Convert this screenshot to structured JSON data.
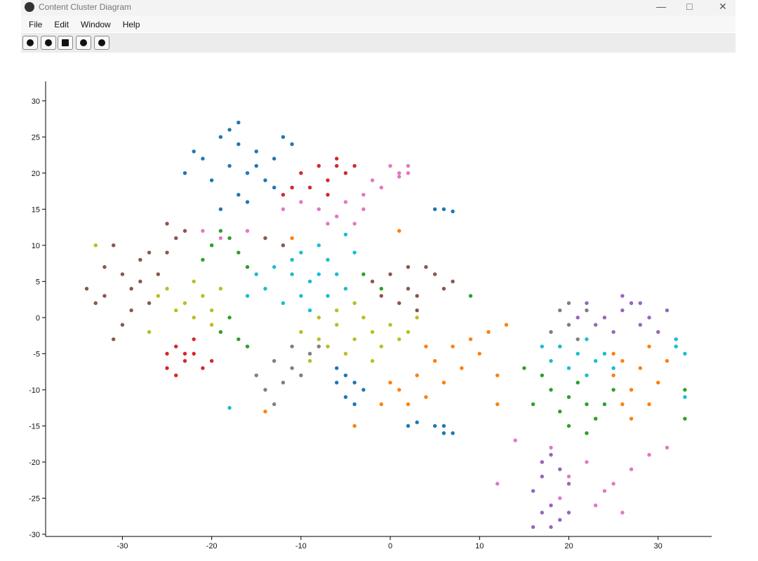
{
  "window": {
    "title": "Content Cluster Diagram",
    "menu": [
      "File",
      "Edit",
      "Window",
      "Help"
    ]
  },
  "chart_data": {
    "type": "scatter",
    "xlim": [
      -38.6,
      36
    ],
    "ylim": [
      -30.3,
      32.7
    ],
    "xticks": [
      -30,
      -20,
      -10,
      0,
      10,
      20,
      30
    ],
    "yticks": [
      -30,
      -25,
      -20,
      -15,
      -10,
      -5,
      0,
      5,
      10,
      15,
      20,
      25,
      30
    ],
    "series": [
      {
        "color": "#1f77b4",
        "x": [
          -19,
          -17,
          -15,
          -13,
          -21,
          -18,
          -16,
          -14,
          -20,
          -17,
          -16,
          -19,
          -22,
          -12,
          -11,
          -17,
          -15,
          -23,
          -13,
          -18,
          -5,
          -4,
          -6,
          -3,
          -5,
          -4,
          -6,
          5,
          6,
          7,
          6,
          2,
          3,
          5,
          6,
          7
        ],
        "values": [
          25,
          24,
          23,
          22,
          22,
          21,
          20,
          19,
          19,
          17,
          16,
          15,
          23,
          25,
          24,
          27,
          21,
          20,
          18,
          26,
          -8,
          -9,
          -7,
          -10,
          -11,
          -12,
          -9,
          -15,
          -16,
          -16,
          -15,
          -15,
          -14.5,
          15,
          15,
          14.7
        ]
      },
      {
        "color": "#d62728",
        "x": [
          -8,
          -6,
          -10,
          -7,
          -5,
          -9,
          -4,
          -11,
          -7,
          -6,
          -12,
          -24,
          -22,
          -25,
          -23,
          -21,
          -24,
          -22,
          -20,
          -23,
          -25
        ],
        "values": [
          21,
          22,
          20,
          19,
          20,
          18,
          21,
          18,
          17,
          21,
          17,
          -4,
          -5,
          -7,
          -6,
          -7,
          -8,
          -3,
          -6,
          -5,
          -5
        ]
      },
      {
        "color": "#e377c2",
        "x": [
          -8,
          -5,
          -3,
          -10,
          -6,
          -2,
          -4,
          -1,
          -7,
          -12,
          -3,
          0,
          1,
          2,
          1,
          2,
          17,
          20,
          22,
          25,
          27,
          19,
          23,
          26,
          29,
          31,
          18,
          24,
          14,
          12,
          -16,
          -19,
          -21
        ],
        "values": [
          15,
          16,
          17,
          16,
          14,
          19,
          13,
          18,
          13,
          15,
          15,
          21,
          20,
          20,
          19.5,
          21,
          -20,
          -22,
          -20,
          -23,
          -21,
          -25,
          -26,
          -27,
          -19,
          -18,
          -18,
          -24,
          -17,
          -23,
          12,
          11,
          12
        ]
      },
      {
        "color": "#9467bd",
        "x": [
          22,
          24,
          26,
          28,
          23,
          25,
          27,
          29,
          30,
          21,
          26,
          28,
          31,
          17,
          18,
          17,
          19,
          16,
          18,
          17,
          19,
          20,
          16,
          18,
          20
        ],
        "values": [
          2,
          0,
          1,
          -1,
          -1,
          -2,
          2,
          0,
          -2,
          0,
          3,
          2,
          1,
          -20,
          -19,
          -22,
          -21,
          -24,
          -26,
          -27,
          -28,
          -27,
          -29,
          -29,
          -23
        ]
      },
      {
        "color": "#8c564b",
        "x": [
          -34,
          -32,
          -30,
          -28,
          -29,
          -27,
          -31,
          -26,
          -25,
          -24,
          -29,
          -33,
          -27,
          -30,
          -25,
          -28,
          -31,
          -23,
          -32,
          -2,
          0,
          2,
          3,
          1,
          4,
          -1,
          5,
          2,
          6,
          7,
          3,
          -14,
          -12
        ],
        "values": [
          4,
          3,
          6,
          8,
          4,
          2,
          10,
          6,
          13,
          11,
          1,
          2,
          9,
          -1,
          9,
          5,
          -3,
          12,
          7,
          5,
          6,
          4,
          3,
          2,
          7,
          3,
          6,
          7,
          4,
          5,
          1,
          11,
          10
        ]
      },
      {
        "color": "#7f7f7f",
        "x": [
          -15,
          -13,
          -11,
          -12,
          -9,
          -14,
          -10,
          -8,
          -11,
          -13,
          19,
          20,
          21,
          18,
          20,
          22,
          19
        ],
        "values": [
          -8,
          -6,
          -7,
          -9,
          -5,
          -10,
          -8,
          -4,
          -4,
          -12,
          1,
          -1,
          -3,
          -2,
          2,
          1,
          -4
        ]
      },
      {
        "color": "#bcbd22",
        "x": [
          -25,
          -23,
          -21,
          -22,
          -20,
          -24,
          -19,
          -22,
          -20,
          -26,
          -27,
          -10,
          -8,
          -6,
          -4,
          -2,
          -7,
          -5,
          -3,
          -1,
          -9,
          -6,
          -4,
          0,
          1,
          2,
          3,
          -8,
          -2,
          -33
        ],
        "values": [
          4,
          2,
          3,
          0,
          -1,
          1,
          4,
          5,
          1,
          3,
          -2,
          -2,
          0,
          -1,
          -3,
          -2,
          -4,
          -5,
          0,
          -4,
          -6,
          1,
          2,
          -1,
          -3,
          -2,
          0,
          -3,
          -6,
          10
        ]
      },
      {
        "color": "#17becf",
        "x": [
          -11,
          -9,
          -7,
          -10,
          -12,
          -8,
          -6,
          -14,
          -13,
          -10,
          -5,
          -9,
          -15,
          -7,
          -11,
          -4,
          -16,
          -8,
          19,
          21,
          23,
          20,
          22,
          24,
          18,
          25,
          17,
          22,
          32,
          33,
          32,
          33,
          -18,
          -5
        ],
        "values": [
          6,
          5,
          8,
          3,
          2,
          10,
          6,
          4,
          7,
          9,
          4,
          1,
          6,
          3,
          8,
          9,
          3,
          6,
          -4,
          -5,
          -6,
          -7,
          -3,
          -5,
          -6,
          -7,
          -4,
          -8,
          -4,
          -5,
          -3,
          -11,
          -12.5,
          11.5
        ]
      },
      {
        "color": "#2ca02c",
        "x": [
          -20,
          -18,
          -17,
          -21,
          -19,
          -16,
          -19,
          -17,
          -18,
          -16,
          18,
          20,
          22,
          19,
          21,
          23,
          17,
          24,
          20,
          16,
          22,
          25,
          15,
          -3,
          -1,
          9,
          33,
          33
        ],
        "values": [
          10,
          11,
          9,
          8,
          12,
          7,
          -2,
          -3,
          0,
          -4,
          -10,
          -11,
          -12,
          -13,
          -9,
          -14,
          -8,
          -12,
          -15,
          -12,
          -16,
          -10,
          -7,
          6,
          4,
          3,
          -10,
          -14
        ]
      },
      {
        "color": "#ff7f0e",
        "x": [
          1,
          3,
          5,
          7,
          9,
          11,
          2,
          4,
          6,
          8,
          10,
          12,
          0,
          -1,
          4,
          13,
          12,
          25,
          27,
          29,
          26,
          28,
          30,
          27,
          25,
          29,
          31,
          26,
          -4,
          -14,
          -11,
          1
        ],
        "values": [
          -10,
          -8,
          -6,
          -4,
          -3,
          -2,
          -12,
          -11,
          -9,
          -7,
          -5,
          -8,
          -9,
          -12,
          -4,
          -1,
          -12,
          -8,
          -10,
          -12,
          -12,
          -7,
          -9,
          -14,
          -5,
          -4,
          -6,
          -6,
          -15,
          -13,
          11,
          12
        ]
      }
    ]
  }
}
